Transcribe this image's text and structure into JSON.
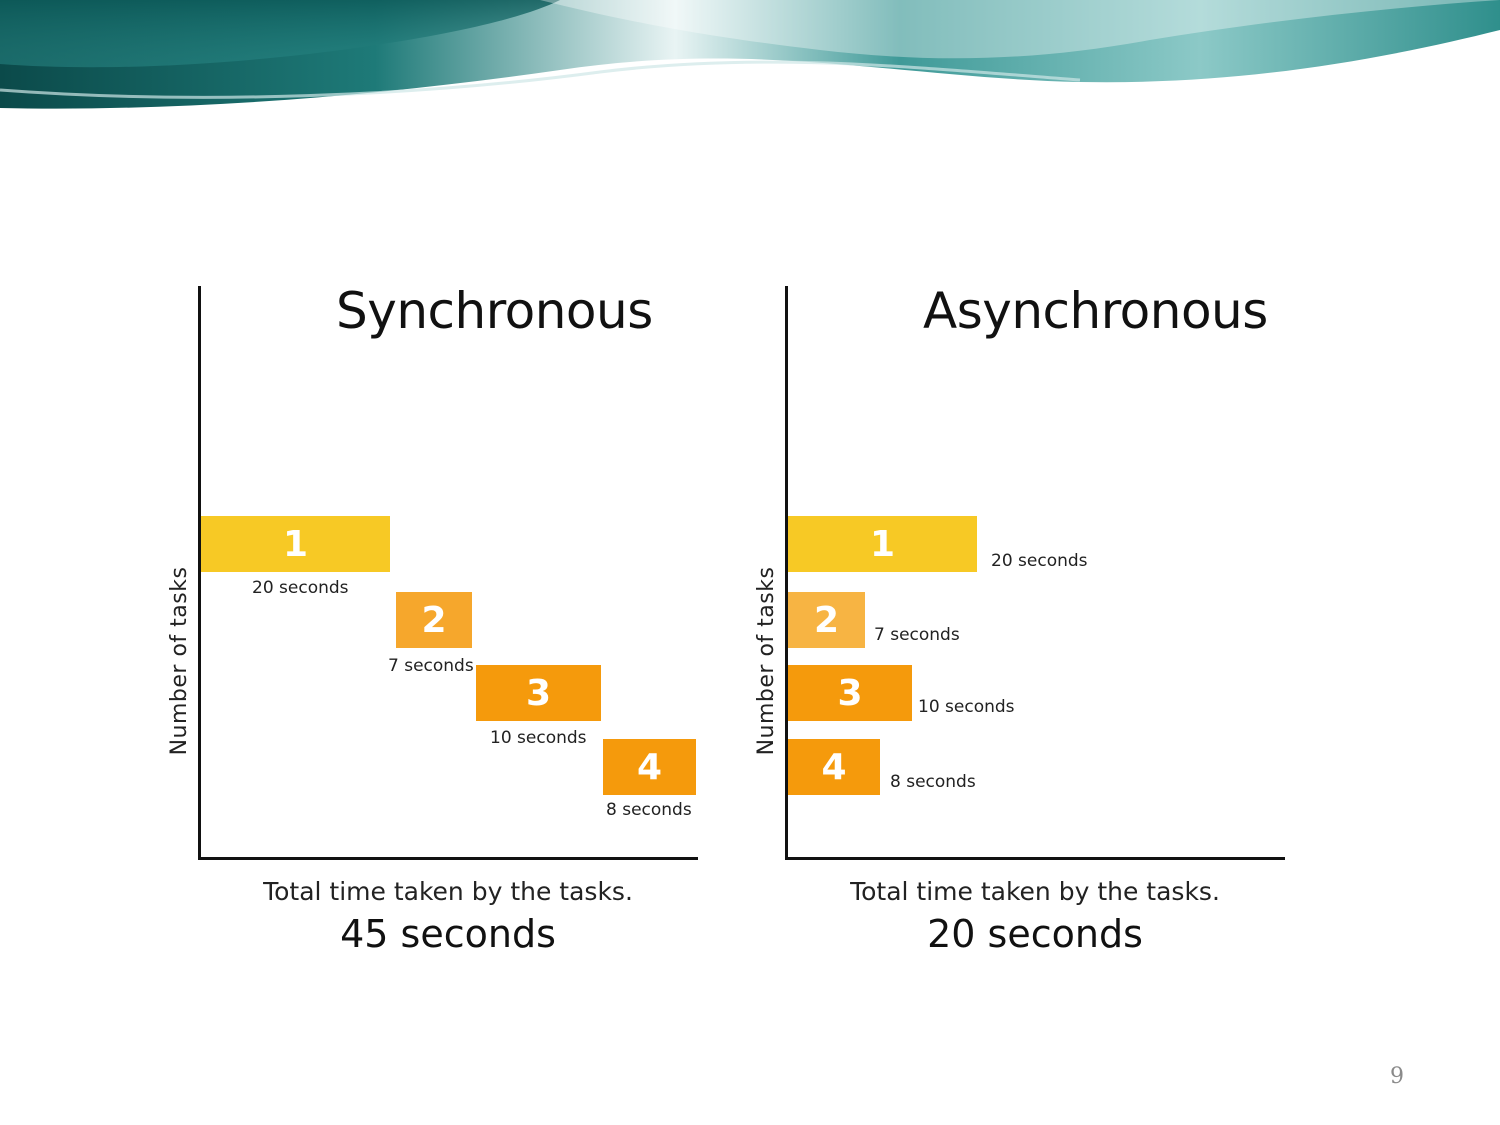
{
  "colors": {
    "task1": "#f7c925",
    "task2_sync": "#f6a72c",
    "task2_async": "#f7b443",
    "task3": "#f59a0c",
    "task4": "#f59a0c"
  },
  "left": {
    "title": "Synchronous",
    "ylabel": "Number of tasks",
    "caption": "Total time taken by the tasks.",
    "total": "45 seconds",
    "tasks": [
      {
        "num": "1",
        "duration": "20 seconds"
      },
      {
        "num": "2",
        "duration": "7 seconds"
      },
      {
        "num": "3",
        "duration": "10 seconds"
      },
      {
        "num": "4",
        "duration": "8 seconds"
      }
    ]
  },
  "right": {
    "title": "Asynchronous",
    "ylabel": "Number of tasks",
    "caption": "Total time taken by the tasks.",
    "total": "20 seconds",
    "tasks": [
      {
        "num": "1",
        "duration": "20 seconds"
      },
      {
        "num": "2",
        "duration": "7 seconds"
      },
      {
        "num": "3",
        "duration": "10 seconds"
      },
      {
        "num": "4",
        "duration": "8 seconds"
      }
    ]
  },
  "page_number": "9"
}
